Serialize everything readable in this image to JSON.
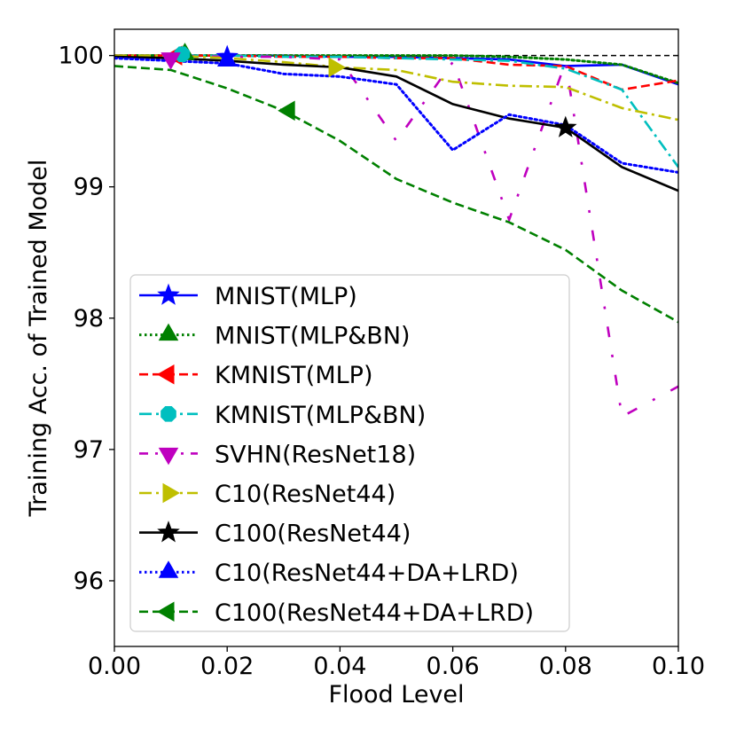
{
  "chart_data": {
    "type": "line",
    "title": "",
    "xlabel": "Flood Level",
    "ylabel": "Training Acc. of Trained Model",
    "xlim": [
      0.0,
      0.1
    ],
    "ylim": [
      95.5,
      100.2
    ],
    "xticks": [
      "0.00",
      "0.02",
      "0.04",
      "0.06",
      "0.08",
      "0.10"
    ],
    "xtick_values": [
      0.0,
      0.02,
      0.04,
      0.06,
      0.08,
      0.1
    ],
    "yticks": [
      "96",
      "97",
      "98",
      "99",
      "100"
    ],
    "ytick_values": [
      96,
      97,
      98,
      99,
      100
    ],
    "reference_line": 100,
    "legend_position": "lower-left",
    "x": [
      0.0,
      0.01,
      0.02,
      0.03,
      0.04,
      0.05,
      0.06,
      0.07,
      0.08,
      0.09,
      0.1
    ],
    "series": [
      {
        "name": "MNIST(MLP)",
        "color": "#0000ff",
        "dash": "solid",
        "marker": "star",
        "values": [
          100.0,
          100.0,
          100.0,
          100.0,
          99.99,
          99.99,
          99.98,
          99.97,
          99.92,
          99.93,
          99.78
        ],
        "marker_x": 0.02,
        "marker_y": 99.99
      },
      {
        "name": "MNIST(MLP&BN)",
        "color": "#008000",
        "dash": "dotted",
        "marker": "triangle-up",
        "values": [
          100.0,
          100.0,
          100.0,
          100.0,
          100.0,
          100.0,
          100.0,
          99.99,
          99.97,
          99.93,
          99.79
        ],
        "marker_x": 0.0125,
        "marker_y": 100.01
      },
      {
        "name": "KMNIST(MLP)",
        "color": "#ff0000",
        "dash": "dashed",
        "marker": "triangle-left",
        "values": [
          100.0,
          100.0,
          100.0,
          99.99,
          99.99,
          99.98,
          99.98,
          99.93,
          99.92,
          99.74,
          99.81
        ],
        "marker_x": 0.011,
        "marker_y": 100.0
      },
      {
        "name": "KMNIST(MLP&BN)",
        "color": "#00bfbf",
        "dash": "dashdot",
        "marker": "octagon",
        "values": [
          100.0,
          100.0,
          100.0,
          99.99,
          99.99,
          99.98,
          99.97,
          99.96,
          99.9,
          99.74,
          99.15
        ],
        "marker_x": 0.012,
        "marker_y": 100.01
      },
      {
        "name": "SVHN(ResNet18)",
        "color": "#bf00bf",
        "dash": "dashdot-sparse",
        "marker": "triangle-down",
        "values": [
          100.0,
          100.0,
          99.99,
          99.99,
          99.97,
          99.35,
          99.95,
          98.75,
          99.95,
          97.25,
          97.48
        ],
        "marker_x": 0.01,
        "marker_y": 99.98
      },
      {
        "name": "C10(ResNet44)",
        "color": "#bfbf00",
        "dash": "dashdot",
        "marker": "triangle-right",
        "values": [
          100.0,
          100.0,
          99.98,
          99.95,
          99.91,
          99.89,
          99.8,
          99.77,
          99.76,
          99.6,
          99.51
        ],
        "marker_x": 0.039,
        "marker_y": 99.91
      },
      {
        "name": "C100(ResNet44)",
        "color": "#000000",
        "dash": "solid",
        "marker": "star",
        "values": [
          99.99,
          99.98,
          99.96,
          99.93,
          99.91,
          99.84,
          99.63,
          99.52,
          99.45,
          99.15,
          98.97
        ],
        "marker_x": 0.08,
        "marker_y": 99.45
      },
      {
        "name": "C10(ResNet44+DA+LRD)",
        "color": "#0000ff",
        "dash": "dotted",
        "marker": "triangle-up",
        "values": [
          99.98,
          99.96,
          99.94,
          99.86,
          99.84,
          99.78,
          99.28,
          99.55,
          99.47,
          99.18,
          99.11
        ],
        "marker_x": 0.02,
        "marker_y": 99.96
      },
      {
        "name": "C100(ResNet44+DA+LRD)",
        "color": "#008000",
        "dash": "dashed",
        "marker": "triangle-left",
        "values": [
          99.92,
          99.89,
          99.75,
          99.58,
          99.35,
          99.06,
          98.88,
          98.73,
          98.52,
          98.21,
          97.97
        ],
        "marker_x": 0.031,
        "marker_y": 99.58
      }
    ]
  }
}
